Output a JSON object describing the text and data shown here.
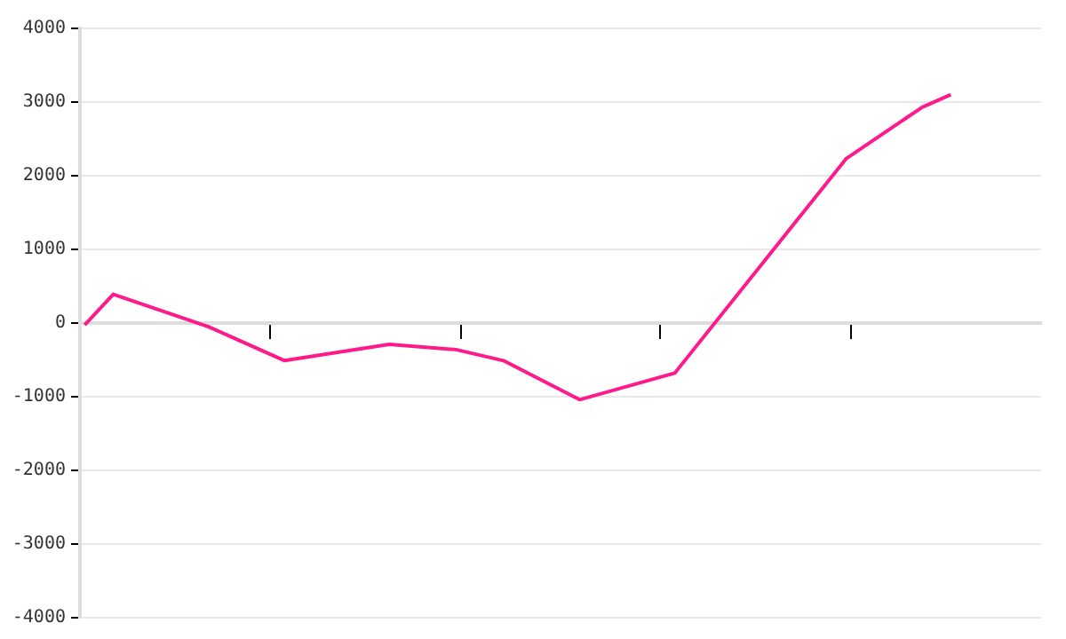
{
  "chart_data": {
    "type": "line",
    "categories": [
      null,
      null,
      null,
      null,
      null,
      null,
      null,
      null,
      null,
      null,
      null,
      null,
      null,
      null,
      null,
      null,
      null,
      null,
      null,
      null,
      null,
      null,
      null,
      null,
      null,
      null,
      null,
      null,
      null,
      null,
      null,
      null,
      null,
      null,
      null,
      null,
      null,
      null,
      null,
      null,
      null,
      null,
      null,
      null,
      null,
      null,
      null,
      null,
      null,
      null,
      null,
      null,
      null,
      null,
      null,
      null,
      null,
      null,
      null,
      null,
      null,
      null,
      null,
      null,
      null,
      null,
      null,
      null,
      null,
      null,
      null,
      null,
      null,
      null,
      null,
      null,
      null,
      null,
      null,
      null,
      null,
      null,
      null,
      null,
      null,
      null,
      null,
      null,
      null,
      null,
      null,
      null,
      null,
      null,
      null,
      null,
      null,
      null,
      null,
      null,
      null
    ],
    "series": [
      {
        "color": "#ff1a8c",
        "values": [
          -25,
          null,
          null,
          390,
          null,
          null,
          null,
          null,
          null,
          null,
          null,
          null,
          null,
          -50,
          null,
          null,
          null,
          null,
          null,
          null,
          null,
          -510,
          null,
          null,
          null,
          null,
          null,
          null,
          null,
          null,
          null,
          null,
          -290,
          null,
          null,
          null,
          null,
          null,
          null,
          -360,
          null,
          null,
          null,
          null,
          -510,
          null,
          null,
          null,
          null,
          null,
          null,
          null,
          -1040,
          null,
          null,
          null,
          null,
          null,
          null,
          null,
          null,
          null,
          -680,
          null,
          null,
          null,
          null,
          null,
          null,
          null,
          null,
          null,
          null,
          null,
          null,
          null,
          null,
          null,
          null,
          null,
          2230,
          null,
          null,
          null,
          null,
          null,
          null,
          null,
          2930,
          null,
          null,
          3100,
          null,
          null,
          null,
          null,
          null,
          null,
          null,
          null,
          null
        ]
      }
    ],
    "ylim": [
      -4000,
      4000
    ],
    "yticks": [
      -4000,
      -3000,
      -2000,
      -1000,
      0,
      1000,
      2000,
      3000,
      4000
    ],
    "grid": "y",
    "legend": false,
    "marker": "none",
    "line_style": "solid"
  }
}
